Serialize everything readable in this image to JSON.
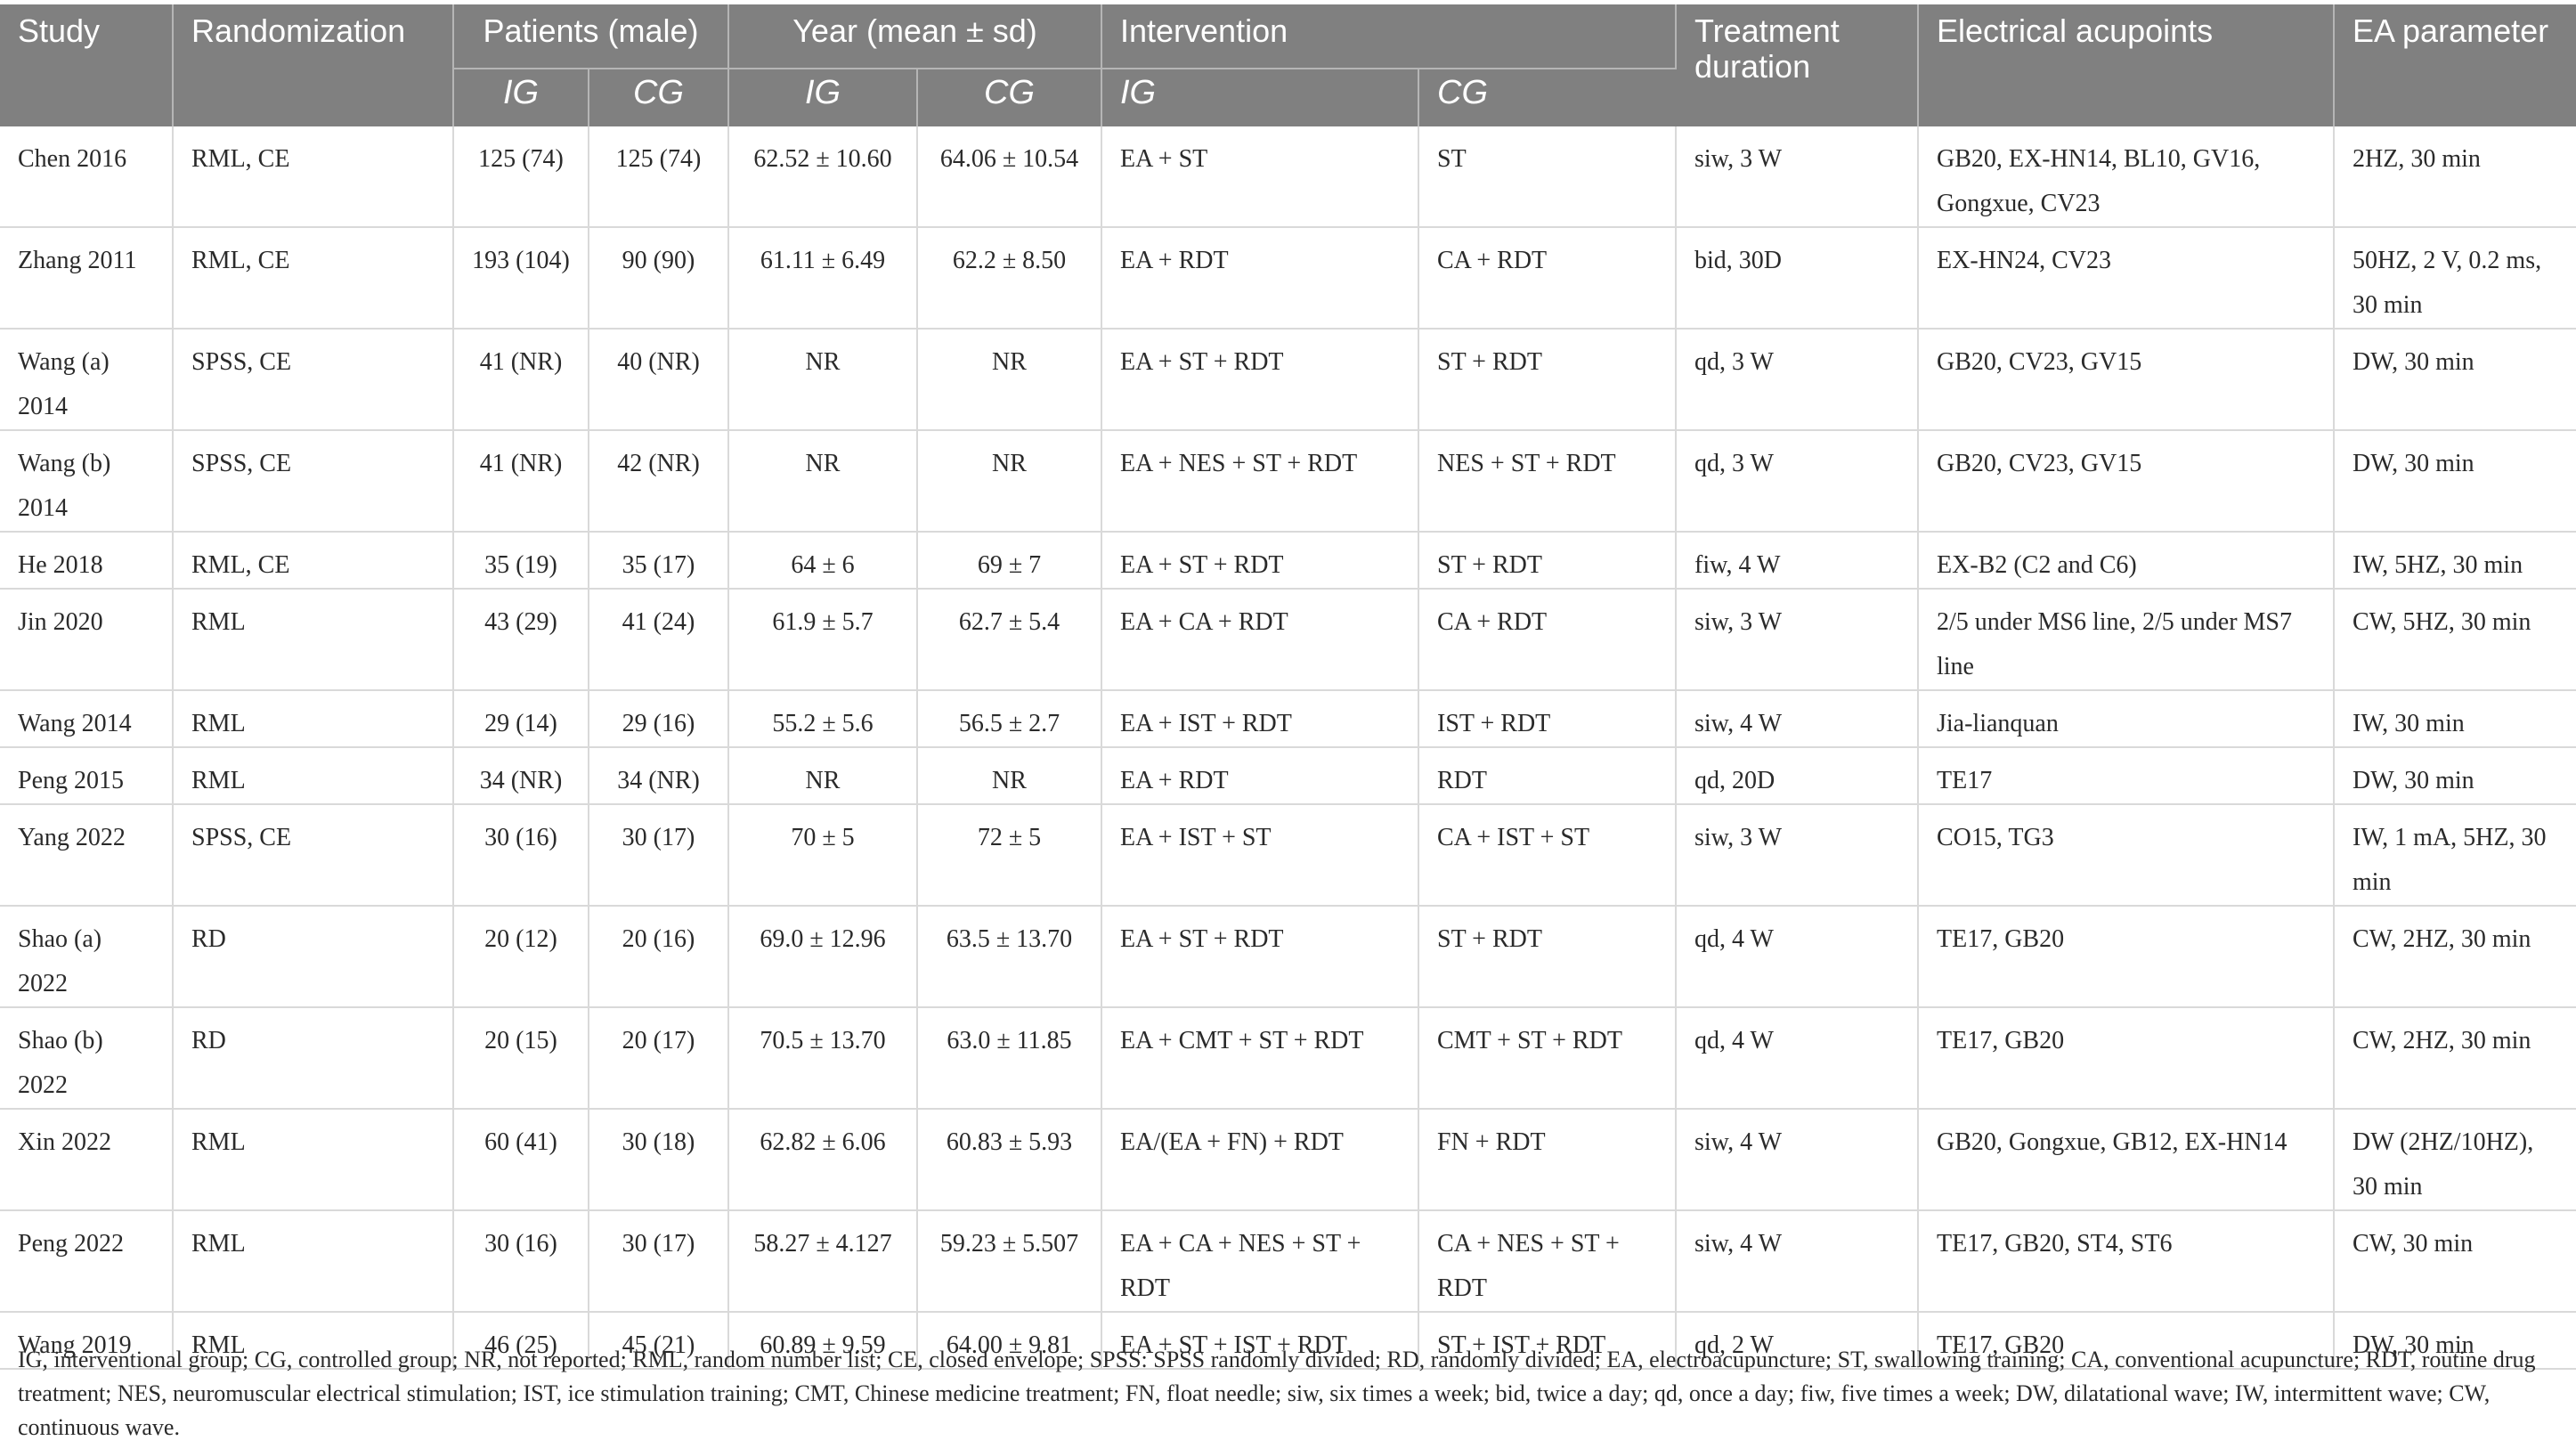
{
  "header": {
    "study": "Study",
    "randomization": "Randomization",
    "patients": "Patients (male)",
    "year": "Year (mean ± sd)",
    "intervention": "Intervention",
    "treatment_duration": "Treatment duration",
    "electrical_acupoints": "Electrical acupoints",
    "ea_parameter": "EA parameter",
    "ig": "IG",
    "cg": "CG"
  },
  "rows": [
    {
      "study": "Chen 2016",
      "rand": "RML, CE",
      "p_ig": "125 (74)",
      "p_cg": "125 (74)",
      "y_ig": "62.52 ± 10.60",
      "y_cg": "64.06 ± 10.54",
      "i_ig": "EA + ST",
      "i_cg": "ST",
      "dur": "siw, 3 W",
      "acu": "GB20, EX-HN14, BL10, GV16, Gongxue, CV23",
      "ea": "2HZ, 30 min"
    },
    {
      "study": "Zhang 2011",
      "rand": "RML, CE",
      "p_ig": "193 (104)",
      "p_cg": "90 (90)",
      "y_ig": "61.11 ± 6.49",
      "y_cg": "62.2 ± 8.50",
      "i_ig": "EA + RDT",
      "i_cg": "CA + RDT",
      "dur": "bid, 30D",
      "acu": "EX-HN24, CV23",
      "ea": "50HZ, 2 V, 0.2 ms, 30 min"
    },
    {
      "study": "Wang (a) 2014",
      "rand": "SPSS, CE",
      "p_ig": "41 (NR)",
      "p_cg": "40 (NR)",
      "y_ig": "NR",
      "y_cg": "NR",
      "i_ig": "EA + ST + RDT",
      "i_cg": "ST + RDT",
      "dur": "qd, 3 W",
      "acu": "GB20, CV23, GV15",
      "ea": "DW, 30 min"
    },
    {
      "study": "Wang (b) 2014",
      "rand": "SPSS, CE",
      "p_ig": "41 (NR)",
      "p_cg": "42 (NR)",
      "y_ig": "NR",
      "y_cg": "NR",
      "i_ig": "EA + NES + ST + RDT",
      "i_cg": "NES + ST + RDT",
      "dur": "qd, 3 W",
      "acu": "GB20, CV23, GV15",
      "ea": "DW, 30 min"
    },
    {
      "study": "He 2018",
      "rand": "RML, CE",
      "p_ig": "35 (19)",
      "p_cg": "35 (17)",
      "y_ig": "64 ± 6",
      "y_cg": "69 ± 7",
      "i_ig": "EA + ST + RDT",
      "i_cg": "ST + RDT",
      "dur": "fiw, 4 W",
      "acu": "EX-B2 (C2 and C6)",
      "ea": "IW, 5HZ, 30 min"
    },
    {
      "study": "Jin 2020",
      "rand": "RML",
      "p_ig": "43 (29)",
      "p_cg": "41 (24)",
      "y_ig": "61.9 ± 5.7",
      "y_cg": "62.7 ± 5.4",
      "i_ig": "EA + CA + RDT",
      "i_cg": "CA + RDT",
      "dur": "siw, 3 W",
      "acu": "2/5 under MS6 line, 2/5 under MS7 line",
      "ea": "CW, 5HZ, 30 min"
    },
    {
      "study": "Wang 2014",
      "rand": "RML",
      "p_ig": "29 (14)",
      "p_cg": "29 (16)",
      "y_ig": "55.2 ± 5.6",
      "y_cg": "56.5 ± 2.7",
      "i_ig": "EA + IST + RDT",
      "i_cg": "IST + RDT",
      "dur": "siw, 4 W",
      "acu": "Jia-lianquan",
      "ea": "IW, 30 min"
    },
    {
      "study": "Peng 2015",
      "rand": "RML",
      "p_ig": "34 (NR)",
      "p_cg": "34 (NR)",
      "y_ig": "NR",
      "y_cg": "NR",
      "i_ig": "EA + RDT",
      "i_cg": "RDT",
      "dur": "qd, 20D",
      "acu": "TE17",
      "ea": "DW, 30 min"
    },
    {
      "study": "Yang 2022",
      "rand": "SPSS, CE",
      "p_ig": "30 (16)",
      "p_cg": "30 (17)",
      "y_ig": "70 ± 5",
      "y_cg": "72 ± 5",
      "i_ig": "EA + IST + ST",
      "i_cg": "CA + IST + ST",
      "dur": "siw, 3 W",
      "acu": "CO15, TG3",
      "ea": "IW, 1 mA, 5HZ, 30 min"
    },
    {
      "study": "Shao (a) 2022",
      "rand": "RD",
      "p_ig": "20 (12)",
      "p_cg": "20 (16)",
      "y_ig": "69.0 ± 12.96",
      "y_cg": "63.5 ± 13.70",
      "i_ig": "EA + ST + RDT",
      "i_cg": "ST + RDT",
      "dur": "qd, 4 W",
      "acu": "TE17, GB20",
      "ea": "CW, 2HZ, 30 min"
    },
    {
      "study": "Shao (b) 2022",
      "rand": "RD",
      "p_ig": "20 (15)",
      "p_cg": "20 (17)",
      "y_ig": "70.5 ± 13.70",
      "y_cg": "63.0 ± 11.85",
      "i_ig": "EA + CMT + ST + RDT",
      "i_cg": "CMT + ST + RDT",
      "dur": "qd, 4 W",
      "acu": "TE17, GB20",
      "ea": "CW, 2HZ, 30 min"
    },
    {
      "study": "Xin 2022",
      "rand": "RML",
      "p_ig": "60 (41)",
      "p_cg": "30 (18)",
      "y_ig": "62.82 ± 6.06",
      "y_cg": "60.83 ± 5.93",
      "i_ig": "EA/(EA + FN) + RDT",
      "i_cg": "FN + RDT",
      "dur": "siw, 4 W",
      "acu": "GB20, Gongxue, GB12, EX-HN14",
      "ea": "DW (2HZ/10HZ), 30 min"
    },
    {
      "study": "Peng 2022",
      "rand": "RML",
      "p_ig": "30 (16)",
      "p_cg": "30 (17)",
      "y_ig": "58.27 ± 4.127",
      "y_cg": "59.23 ± 5.507",
      "i_ig": "EA + CA + NES + ST + RDT",
      "i_cg": "CA + NES + ST + RDT",
      "dur": "siw, 4 W",
      "acu": "TE17, GB20, ST4, ST6",
      "ea": "CW, 30 min"
    },
    {
      "study": "Wang 2019",
      "rand": "RML",
      "p_ig": "46 (25)",
      "p_cg": "45 (21)",
      "y_ig": "60.89 ± 9.59",
      "y_cg": "64.00 ± 9.81",
      "i_ig": "EA + ST + IST + RDT",
      "i_cg": "ST + IST + RDT",
      "dur": "qd, 2 W",
      "acu": "TE17, GB20",
      "ea": "DW, 30 min"
    }
  ],
  "footnote": "IG, interventional group; CG, controlled group; NR, not reported; RML, random number list; CE, closed envelope; SPSS: SPSS randomly divided; RD, randomly divided; EA, electroacupuncture; ST, swallowing training; CA, conventional acupuncture; RDT, routine drug treatment; NES, neuromuscular electrical stimulation; IST, ice stimulation training; CMT, Chinese medicine treatment; FN, float needle; siw, six times a week; bid, twice a day; qd, once a day; fiw, five times a week; DW, dilatational wave; IW, intermittent wave; CW, continuous wave."
}
